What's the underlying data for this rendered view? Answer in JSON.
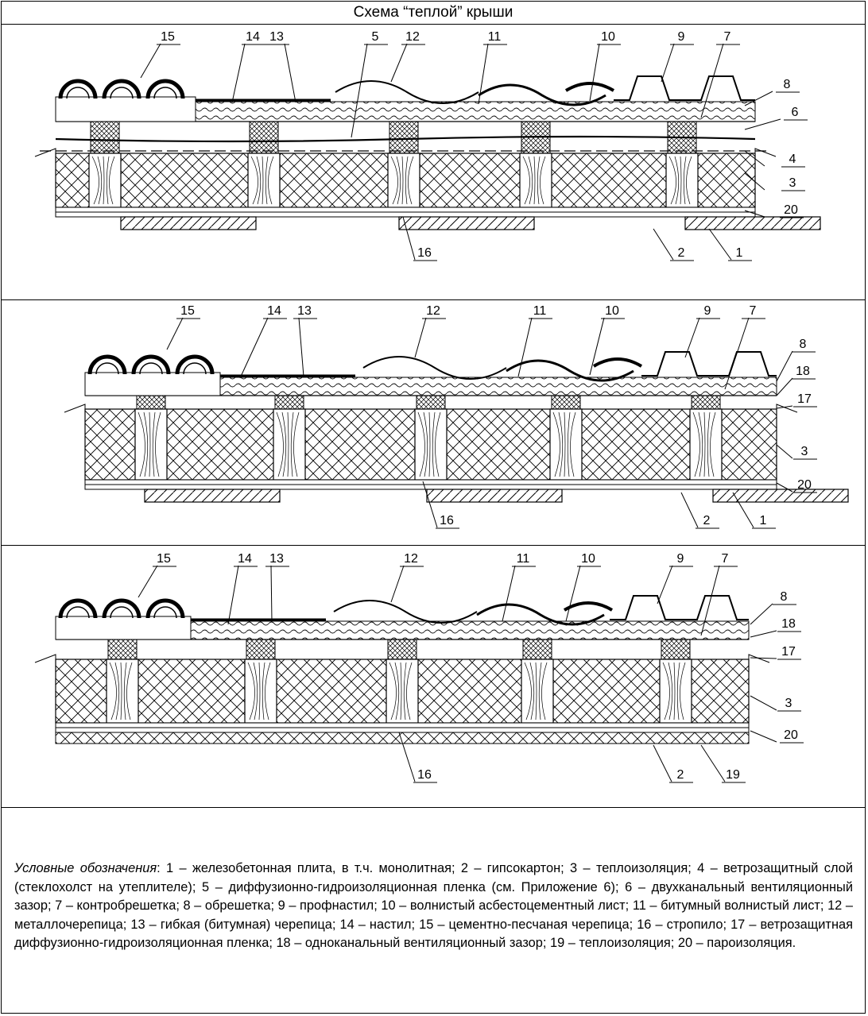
{
  "title": "Схема “теплой” крыши",
  "panels": [
    {
      "labels": [
        "15",
        "14",
        "13",
        "5",
        "12",
        "11",
        "10",
        "9",
        "7",
        "8",
        "6",
        "4",
        "3",
        "20",
        "16",
        "2",
        "1"
      ]
    },
    {
      "labels": [
        "15",
        "14",
        "13",
        "12",
        "11",
        "10",
        "9",
        "7",
        "8",
        "18",
        "17",
        "3",
        "20",
        "16",
        "2",
        "1"
      ]
    },
    {
      "labels": [
        "15",
        "14",
        "13",
        "12",
        "11",
        "10",
        "9",
        "7",
        "8",
        "18",
        "17",
        "3",
        "20",
        "16",
        "2",
        "19"
      ]
    }
  ],
  "legend": {
    "heading": "Условные обозначения",
    "text": ": 1 – железобетонная плита, в т.ч. монолитная; 2 – гипсокартон; 3 – теплоизоляция; 4 – ветрозащитный слой (стеклохолст на утеплителе); 5 – диффузионно-гидроизоляционная пленка (см. Приложение 6); 6 – двухканальный вентиляционный зазор; 7 – контробрешетка; 8 – обрешетка; 9 – профнастил; 10 – волнистый асбестоцементный лист; 11 – битумный волнистый лист; 12 – металлочерепица; 13 – гибкая (битумная) черепица; 14 – настил; 15 – цементно-песчаная черепица; 16 – стропило; 17 – ветрозащитная диффузионно-гидроизоляционная пленка; 18 – одноканальный вентиляционный зазор; 19 – теплоизоляция; 20 – пароизоляция."
  }
}
